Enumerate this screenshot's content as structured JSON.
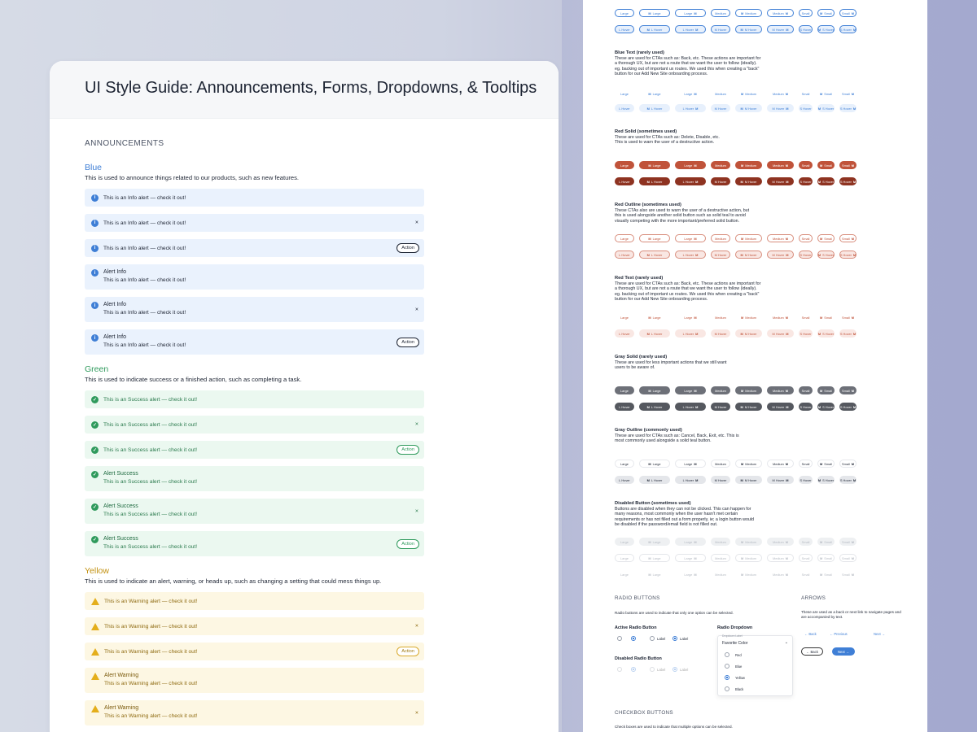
{
  "title": "UI Style Guide: Announcements, Forms, Dropdowns, & Tooltips",
  "section": "ANNOUNCEMENTS",
  "groups": [
    {
      "name": "Blue",
      "desc": "This is used to announce things related to our products, such as new features.",
      "msg": "This is an Info alert — check it out!",
      "title": "Alert Info"
    },
    {
      "name": "Green",
      "desc": "This is used to indicate success or a finished action, such as completing a task.",
      "msg": "This is an Success alert — check it out!",
      "title": "Alert Success"
    },
    {
      "name": "Yellow",
      "desc": "This is used to indicate an alert, warning, or heads up, such as changing a setting that could mess things up.",
      "msg": "This is an Warning alert — check it out!",
      "title": "Alert Warning"
    }
  ],
  "action_label": "Action",
  "close_glyph": "×",
  "buttons": {
    "row1": [
      "Large",
      "Large",
      "Large",
      "Medium",
      "Medium",
      "Medium",
      "Small",
      "Small",
      "Small"
    ],
    "row2": [
      "L Hover",
      "L Hover",
      "L Hover",
      "M Hover",
      "M Hover",
      "M Hover",
      "S Hover",
      "S Hover",
      "S Hover"
    ],
    "blue_text": {
      "title": "Blue Text (rarely used)",
      "desc": "These are used for CTAs such as: Back, etc. These actions are important for a thorough UX, but are not a route that we want the user to follow (ideally). eg. backing out of important ux routes. We used this when creating a \"back\" button for our Add New Site onboarding process."
    },
    "red_solid": {
      "title": "Red Solid (sometimes used)",
      "desc": "These are used for CTAs such as: Delete, Disable, etc. This is used to warn the user of a destructive action."
    },
    "red_outline": {
      "title": "Red Outline (sometimes used)",
      "desc": "These CTAs also are used to warn the user of a destructive action, but this is used alongside another solid button such as solid teal to avoid visually competing with the more important/preferred solid button."
    },
    "red_text": {
      "title": "Red Text (rarely used)",
      "desc": "These are used for CTAs such as: Back, etc. These actions are important for a thorough UX, but are not a route that we want the user to follow (ideally). eg. backing out of important ux routes. We used this when creating a \"back\" button for our Add New Site onboarding process."
    },
    "gray_solid": {
      "title": "Gray Solid (rarely used)",
      "desc": "These are used for less important actions that we still want users to be aware of."
    },
    "gray_outline": {
      "title": "Gray Outline (commonly used)",
      "desc": "These are used for CTAs such as: Cancel, Back, Exit, etc. This is most commonly used alongside a solid teal button."
    },
    "disabled": {
      "title": "Disabled Button (sometimes used)",
      "desc": "Buttons are disabled when they can not be clicked. This can happen for many reasons, most commonly when the user hasn't met certain requirements or has not filled out a form properly, ie; a login button would be disabled if the password/email field is not filled out."
    }
  },
  "radio": {
    "heading": "RADIO BUTTONS",
    "desc": "Radio buttons are used to indicate that only one option can be selected.",
    "active": "Active Radio Button",
    "disabled": "Disabled Radio Button",
    "label": "Label",
    "dropdown_title": "Radio Dropdown",
    "dropdown_small": "Dropdown Label",
    "dropdown_value": "Favorite Color",
    "options": [
      "Red",
      "Blue",
      "Yellow",
      "Black"
    ]
  },
  "arrows": {
    "heading": "ARROWS",
    "desc": "These are used as a back or next link to navigate pages and are accompanied by text.",
    "back": "← Back",
    "previous": "← Previous",
    "next": "Next →",
    "back_btn": "← Back",
    "next_btn": "Next →"
  },
  "checkbox": {
    "heading": "CHECKBOX BUTTONS",
    "desc": "Check boxes are used to indicate that multiple options can be selected."
  },
  "colors": {
    "blue": "#3f7fd6",
    "green": "#2f9a5c",
    "yellow": "#c2900f",
    "red": "#c0533a"
  }
}
